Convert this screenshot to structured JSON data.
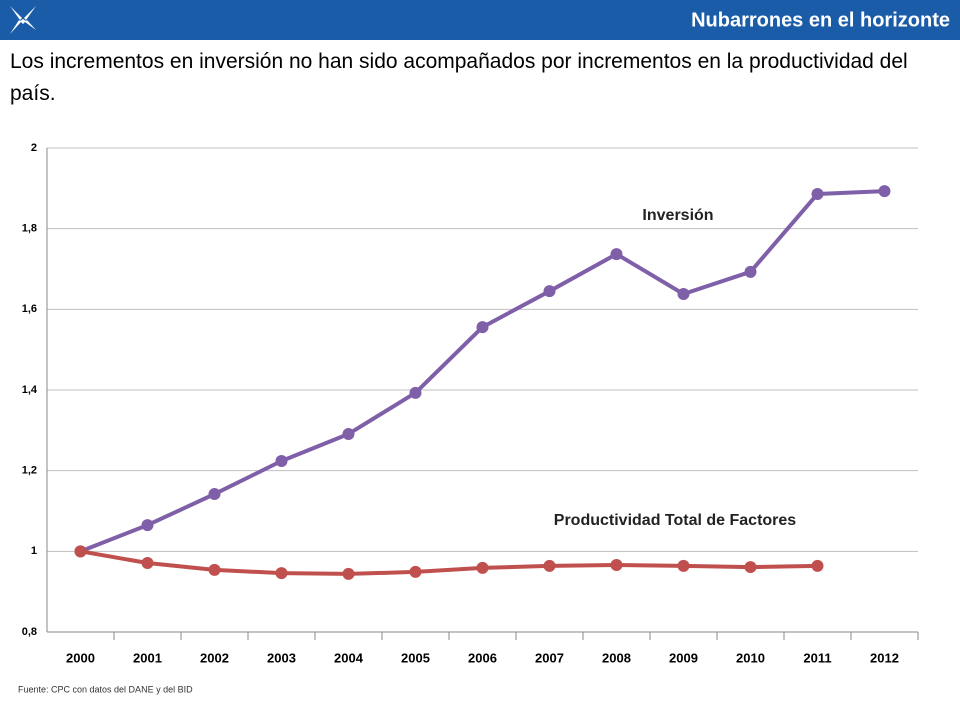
{
  "chart_data": {
    "type": "line",
    "header": "Nubarrones en el horizonte",
    "title": "Los incrementos en inversión no han sido acompañados por incrementos en la productividad del país.",
    "source": "Fuente: CPC con datos del DANE y del BID",
    "categories": [
      "2000",
      "2001",
      "2002",
      "2003",
      "2004",
      "2005",
      "2006",
      "2007",
      "2008",
      "2009",
      "2010",
      "2011",
      "2012"
    ],
    "series": [
      {
        "name": "Inversión",
        "color": "#7f5fa8",
        "values": [
          1.0,
          1.065,
          1.142,
          1.224,
          1.291,
          1.393,
          1.556,
          1.645,
          1.737,
          1.638,
          1.693,
          1.886,
          1.893
        ]
      },
      {
        "name": "Productividad Total de Factores",
        "color": "#c0504d",
        "values": [
          1.0,
          0.971,
          0.954,
          0.946,
          0.944,
          0.949,
          0.959,
          0.964,
          0.966,
          0.964,
          0.961,
          0.964,
          null
        ]
      }
    ],
    "ylim": [
      0.8,
      2
    ],
    "yticks": [
      {
        "value": 0.8,
        "label": "0,8"
      },
      1,
      {
        "value": 1.2,
        "label": "1,2"
      },
      {
        "value": 1.4,
        "label": "1,4"
      },
      {
        "value": 1.6,
        "label": "1,6"
      },
      {
        "value": 1.8,
        "label": "1,8"
      },
      2
    ],
    "grid": true
  }
}
